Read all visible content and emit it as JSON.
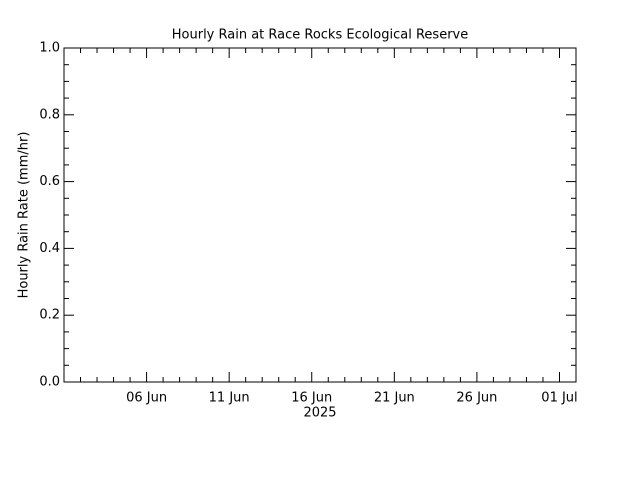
{
  "chart_data": {
    "type": "line",
    "title": "Hourly Rain at Race Rocks Ecological Reserve",
    "ylabel": "Hourly Rain Rate (mm/hr)",
    "xlabel": "2025",
    "xlim": [
      "2025-06-01",
      "2025-07-02"
    ],
    "xticks": [
      {
        "value": "2025-06-06",
        "label": "06 Jun"
      },
      {
        "value": "2025-06-11",
        "label": "11 Jun"
      },
      {
        "value": "2025-06-16",
        "label": "16 Jun"
      },
      {
        "value": "2025-06-21",
        "label": "21 Jun"
      },
      {
        "value": "2025-06-26",
        "label": "26 Jun"
      },
      {
        "value": "2025-07-01",
        "label": "01 Jul"
      }
    ],
    "xminorticks": [
      "2025-06-02",
      "2025-06-03",
      "2025-06-04",
      "2025-06-05",
      "2025-06-07",
      "2025-06-08",
      "2025-06-09",
      "2025-06-10",
      "2025-06-12",
      "2025-06-13",
      "2025-06-14",
      "2025-06-15",
      "2025-06-17",
      "2025-06-18",
      "2025-06-19",
      "2025-06-20",
      "2025-06-22",
      "2025-06-23",
      "2025-06-24",
      "2025-06-25",
      "2025-06-27",
      "2025-06-28",
      "2025-06-29",
      "2025-06-30"
    ],
    "ylim": [
      0,
      1
    ],
    "yticks": [
      {
        "value": 0,
        "label": "0.0"
      },
      0.2,
      0.4,
      0.6,
      0.8,
      {
        "value": 1,
        "label": "1.0"
      }
    ],
    "yminorticks": [
      0.05,
      0.1,
      0.15,
      0.25,
      0.3,
      0.35,
      0.45,
      0.5,
      0.55,
      0.65,
      0.7,
      0.75,
      0.85,
      0.9,
      0.95
    ],
    "color": "#000000"
  }
}
